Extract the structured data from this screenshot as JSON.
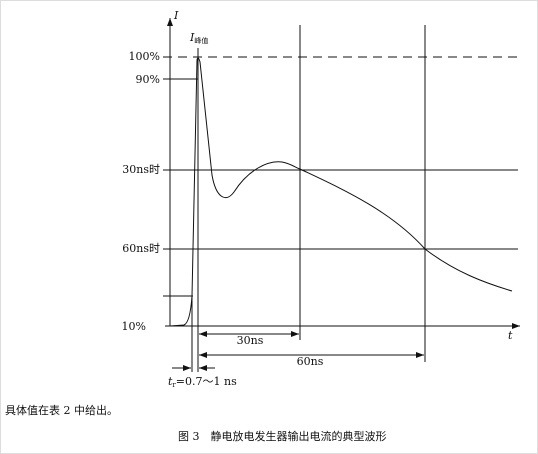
{
  "figure": {
    "axis_labels": {
      "y": "I",
      "x": "t"
    },
    "peak_label": {
      "main": "I",
      "sub": "峰值"
    },
    "levels": [
      "100%",
      "90%",
      "30ns时",
      "60ns时",
      "10%"
    ],
    "dimensions": [
      "30ns",
      "60ns"
    ],
    "rise_time": {
      "sym": "t",
      "sub": "r",
      "text": "=0.7～1 ns"
    },
    "note": "具体值在表 2 中给出。",
    "caption": "图 3　静电放电发生器输出电流的典型波形"
  }
}
